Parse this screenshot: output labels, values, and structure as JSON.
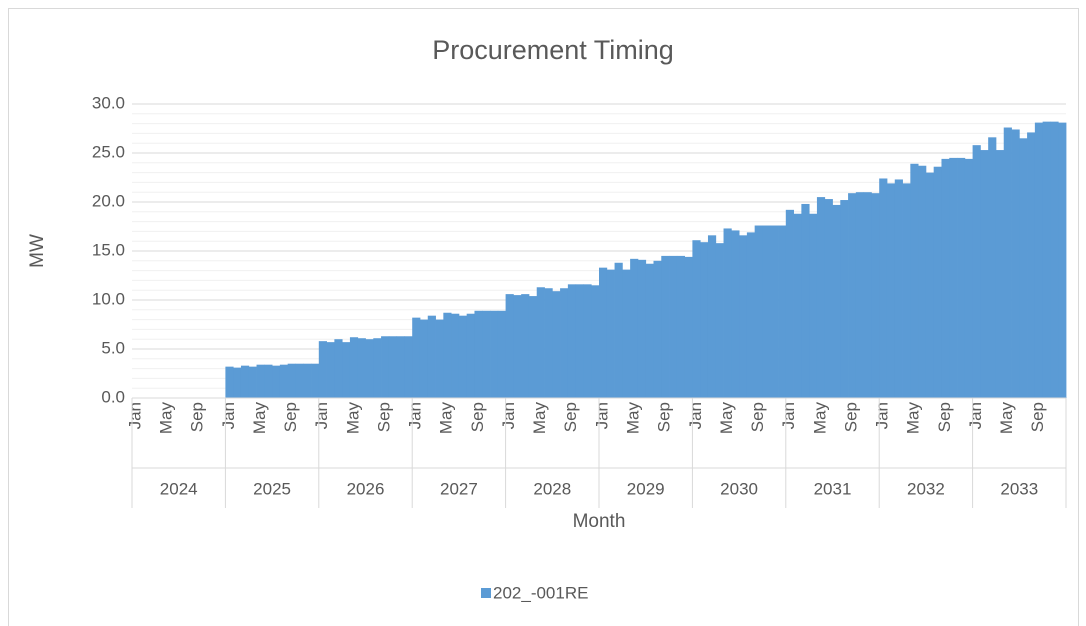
{
  "chart_data": {
    "type": "bar",
    "title": "Procurement Timing",
    "x_label": "Month",
    "y_label": "MW",
    "categories": [
      "Jan",
      null,
      null,
      null,
      "May",
      null,
      null,
      null,
      "Sep",
      null,
      null,
      null,
      "Jan",
      null,
      null,
      null,
      "May",
      null,
      null,
      null,
      "Sep",
      null,
      null,
      null,
      "Jan",
      null,
      null,
      null,
      "May",
      null,
      null,
      null,
      "Sep",
      null,
      null,
      null,
      "Jan",
      null,
      null,
      null,
      "May",
      null,
      null,
      null,
      "Sep",
      null,
      null,
      null,
      "Jan",
      null,
      null,
      null,
      "May",
      null,
      null,
      null,
      "Sep",
      null,
      null,
      null,
      "Jan",
      null,
      null,
      null,
      "May",
      null,
      null,
      null,
      "Sep",
      null,
      null,
      null,
      "Jan",
      null,
      null,
      null,
      "May",
      null,
      null,
      null,
      "Sep",
      null,
      null,
      null,
      "Jan",
      null,
      null,
      null,
      "May",
      null,
      null,
      null,
      "Sep",
      null,
      null,
      null,
      "Jan",
      null,
      null,
      null,
      "May",
      null,
      null,
      null,
      "Sep",
      null,
      null,
      null,
      "Jan",
      null,
      null,
      null,
      "May",
      null,
      null,
      null,
      "Sep",
      null,
      null,
      null
    ],
    "year_groups": [
      "2024",
      "2025",
      "2026",
      "2027",
      "2028",
      "2029",
      "2030",
      "2031",
      "2032",
      "2033"
    ],
    "series": [
      {
        "name": "202_-001RE",
        "color": "#5b9bd5",
        "values": [
          0,
          0,
          0,
          0,
          0,
          0,
          0,
          0,
          0,
          0,
          0,
          0,
          3.2,
          3.1,
          3.3,
          3.2,
          3.4,
          3.4,
          3.3,
          3.4,
          3.5,
          3.5,
          3.5,
          3.5,
          5.8,
          5.7,
          6.0,
          5.7,
          6.2,
          6.1,
          6.0,
          6.1,
          6.3,
          6.3,
          6.3,
          6.3,
          8.2,
          8.0,
          8.4,
          8.0,
          8.7,
          8.6,
          8.4,
          8.6,
          8.9,
          8.9,
          8.9,
          8.9,
          10.6,
          10.5,
          10.6,
          10.4,
          11.3,
          11.2,
          10.9,
          11.2,
          11.6,
          11.6,
          11.6,
          11.5,
          13.3,
          13.1,
          13.8,
          13.1,
          14.2,
          14.1,
          13.7,
          14.0,
          14.5,
          14.5,
          14.5,
          14.4,
          16.1,
          15.9,
          16.6,
          15.8,
          17.3,
          17.1,
          16.6,
          16.9,
          17.6,
          17.6,
          17.6,
          17.6,
          19.2,
          18.8,
          19.8,
          18.8,
          20.5,
          20.3,
          19.7,
          20.2,
          20.9,
          21.0,
          21.0,
          20.9,
          22.4,
          21.9,
          22.3,
          21.9,
          23.9,
          23.7,
          23.0,
          23.6,
          24.4,
          24.5,
          24.5,
          24.4,
          25.8,
          25.3,
          26.6,
          25.3,
          27.6,
          27.4,
          26.5,
          27.1,
          28.1,
          28.2,
          28.2,
          28.1
        ]
      }
    ],
    "ylim": [
      0,
      30
    ],
    "yticks": [
      {
        "value": 0,
        "label": "0.0"
      },
      {
        "value": 5,
        "label": "5.0"
      },
      {
        "value": 10,
        "label": "10.0"
      },
      {
        "value": 15,
        "label": "15.0"
      },
      {
        "value": 20,
        "label": "20.0"
      },
      {
        "value": 25,
        "label": "25.0"
      },
      {
        "value": 30,
        "label": "30.0"
      }
    ],
    "minor_yticks": [
      1,
      2,
      3,
      4,
      6,
      7,
      8,
      9,
      11,
      12,
      13,
      14,
      16,
      17,
      18,
      19,
      21,
      22,
      23,
      24,
      26,
      27,
      28,
      29
    ],
    "grid": true,
    "legend": "bottom"
  }
}
